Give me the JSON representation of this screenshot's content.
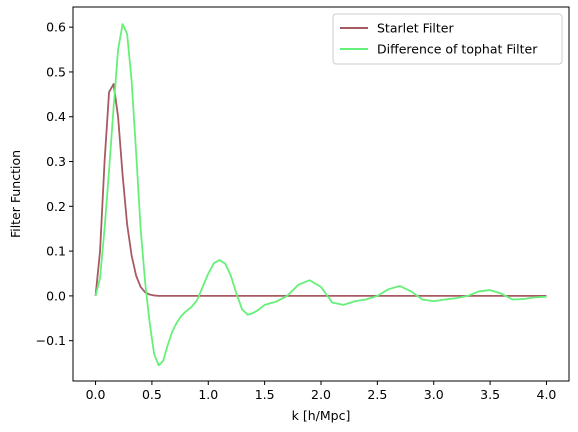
{
  "chart_data": {
    "type": "line",
    "title": "",
    "xlabel": "k [h/Mpc]",
    "ylabel": "Filter Function",
    "xlim": [
      -0.2,
      4.2
    ],
    "ylim": [
      -0.19,
      0.645
    ],
    "xticks": [
      0.0,
      0.5,
      1.0,
      1.5,
      2.0,
      2.5,
      3.0,
      3.5,
      4.0
    ],
    "xtick_labels": [
      "0.0",
      "0.5",
      "1.0",
      "1.5",
      "2.0",
      "2.5",
      "3.0",
      "3.5",
      "4.0"
    ],
    "yticks": [
      -0.1,
      0.0,
      0.1,
      0.2,
      0.3,
      0.4,
      0.5,
      0.6
    ],
    "ytick_labels": [
      "−0.1",
      "0.0",
      "0.1",
      "0.2",
      "0.3",
      "0.4",
      "0.5",
      "0.6"
    ],
    "grid": false,
    "legend_position": "top-right",
    "series": [
      {
        "name": "Starlet Filter",
        "color": "#a85a62",
        "x": [
          0.0,
          0.04,
          0.08,
          0.12,
          0.16,
          0.2,
          0.24,
          0.28,
          0.32,
          0.36,
          0.4,
          0.44,
          0.48,
          0.52,
          0.56,
          0.6,
          0.7,
          0.8,
          1.0,
          1.5,
          2.0,
          2.5,
          3.0,
          3.5,
          4.0
        ],
        "y": [
          0.0,
          0.1,
          0.3,
          0.455,
          0.473,
          0.4,
          0.27,
          0.16,
          0.09,
          0.045,
          0.02,
          0.008,
          0.003,
          0.001,
          0.0,
          0.0,
          0.0,
          0.0,
          0.0,
          0.0,
          0.0,
          0.0,
          0.0,
          0.0,
          0.0
        ]
      },
      {
        "name": "Difference of tophat Filter",
        "color": "#66f07a",
        "x": [
          0.0,
          0.04,
          0.08,
          0.12,
          0.16,
          0.2,
          0.24,
          0.28,
          0.32,
          0.36,
          0.4,
          0.44,
          0.48,
          0.52,
          0.56,
          0.6,
          0.64,
          0.68,
          0.72,
          0.76,
          0.8,
          0.85,
          0.9,
          0.95,
          1.0,
          1.05,
          1.1,
          1.15,
          1.2,
          1.25,
          1.3,
          1.35,
          1.4,
          1.45,
          1.5,
          1.6,
          1.7,
          1.8,
          1.9,
          2.0,
          2.1,
          2.2,
          2.3,
          2.4,
          2.5,
          2.6,
          2.7,
          2.8,
          2.9,
          3.0,
          3.1,
          3.2,
          3.3,
          3.4,
          3.5,
          3.6,
          3.7,
          3.8,
          3.9,
          4.0
        ],
        "y": [
          0.0,
          0.04,
          0.15,
          0.28,
          0.42,
          0.55,
          0.607,
          0.585,
          0.48,
          0.32,
          0.15,
          0.03,
          -0.06,
          -0.13,
          -0.155,
          -0.145,
          -0.11,
          -0.08,
          -0.06,
          -0.045,
          -0.035,
          -0.025,
          -0.01,
          0.02,
          0.05,
          0.073,
          0.08,
          0.072,
          0.045,
          0.005,
          -0.03,
          -0.042,
          -0.038,
          -0.03,
          -0.02,
          -0.013,
          0.0,
          0.025,
          0.035,
          0.02,
          -0.015,
          -0.02,
          -0.012,
          -0.008,
          0.0,
          0.015,
          0.022,
          0.01,
          -0.008,
          -0.012,
          -0.008,
          -0.005,
          0.0,
          0.01,
          0.013,
          0.005,
          -0.008,
          -0.007,
          -0.003,
          -0.002
        ]
      }
    ]
  }
}
